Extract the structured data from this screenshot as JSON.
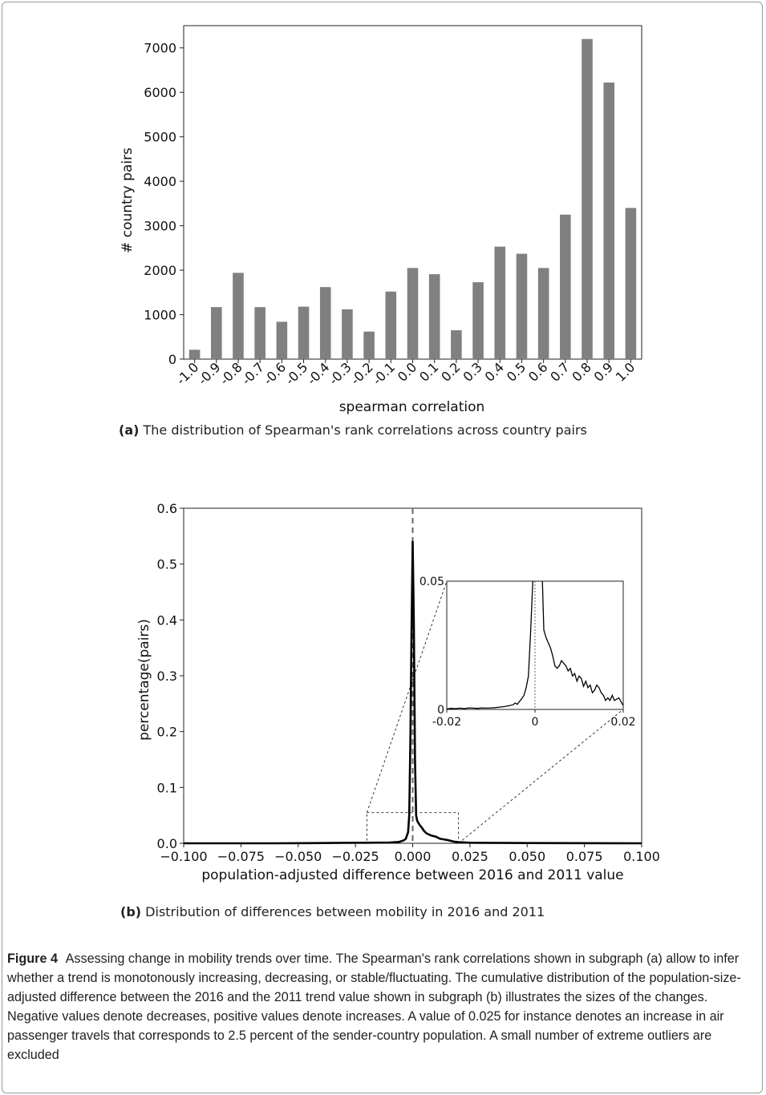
{
  "chart_data": [
    {
      "type": "bar",
      "categories": [
        "-1.0",
        "-0.9",
        "-0.8",
        "-0.7",
        "-0.6",
        "-0.5",
        "-0.4",
        "-0.3",
        "-0.2",
        "-0.1",
        "0.0",
        "0.1",
        "0.2",
        "0.3",
        "0.4",
        "0.5",
        "0.6",
        "0.7",
        "0.8",
        "0.9",
        "1.0"
      ],
      "values": [
        210,
        1170,
        1940,
        1170,
        840,
        1180,
        1620,
        1120,
        620,
        1520,
        2050,
        1910,
        650,
        1730,
        2530,
        2370,
        2050,
        3250,
        7200,
        6220,
        3400
      ],
      "xlabel": "spearman correlation",
      "ylabel": "# country pairs",
      "yticks": [
        0,
        1000,
        2000,
        3000,
        4000,
        5000,
        6000,
        7000
      ],
      "ylim": [
        0,
        7500
      ],
      "bar_color": "#808080",
      "grid": false,
      "caption_label": "(a)",
      "caption": "The distribution of Spearman's rank correlations across country pairs"
    },
    {
      "type": "line",
      "x": [
        -0.1,
        -0.08,
        -0.06,
        -0.04,
        -0.03,
        -0.02,
        -0.015,
        -0.01,
        -0.006,
        -0.004,
        -0.003,
        -0.002,
        -0.0015,
        -0.001,
        -0.0005,
        0.0,
        0.0005,
        0.001,
        0.0015,
        0.002,
        0.003,
        0.004,
        0.005,
        0.006,
        0.008,
        0.01,
        0.012,
        0.015,
        0.018,
        0.02,
        0.025,
        0.03,
        0.05,
        0.07,
        0.1
      ],
      "y": [
        0.0,
        0.0,
        0.0,
        0.0005,
        0.0008,
        0.001,
        0.0012,
        0.0015,
        0.0025,
        0.005,
        0.008,
        0.02,
        0.05,
        0.18,
        0.38,
        0.54,
        0.4,
        0.15,
        0.05,
        0.04,
        0.033,
        0.028,
        0.022,
        0.018,
        0.014,
        0.012,
        0.008,
        0.006,
        0.003,
        0.002,
        0.001,
        0.0008,
        0.0005,
        0.0003,
        0.0
      ],
      "xlabel": "population-adjusted difference between 2016 and 2011 value",
      "ylabel": "percentage(pairs)",
      "xticks": [
        "−0.100",
        "−0.075",
        "−0.050",
        "−0.025",
        "0.000",
        "0.025",
        "0.050",
        "0.075",
        "0.100"
      ],
      "yticks": [
        "0.0",
        "0.1",
        "0.2",
        "0.3",
        "0.4",
        "0.5",
        "0.6"
      ],
      "xlim": [
        -0.1,
        0.1
      ],
      "ylim": [
        0,
        0.6
      ],
      "reference_line_x": 0.0,
      "grid": false,
      "inset": {
        "xlim": [
          -0.02,
          0.02
        ],
        "ylim": [
          0,
          0.05
        ],
        "xticks": [
          "-0.02",
          "0",
          "0.02"
        ],
        "yticks": [
          "0",
          "0.05"
        ],
        "x": [
          -0.02,
          -0.019,
          -0.018,
          -0.017,
          -0.016,
          -0.015,
          -0.014,
          -0.013,
          -0.012,
          -0.011,
          -0.01,
          -0.009,
          -0.008,
          -0.007,
          -0.006,
          -0.005,
          -0.0045,
          -0.004,
          -0.0035,
          -0.003,
          -0.0025,
          -0.002,
          -0.0015,
          -0.001,
          -0.0005,
          0.0,
          0.0015,
          0.002,
          0.0025,
          0.003,
          0.0035,
          0.004,
          0.0045,
          0.005,
          0.0055,
          0.006,
          0.0065,
          0.007,
          0.0075,
          0.008,
          0.0085,
          0.009,
          0.0095,
          0.01,
          0.0105,
          0.011,
          0.0115,
          0.012,
          0.0125,
          0.013,
          0.0135,
          0.014,
          0.0145,
          0.015,
          0.0155,
          0.016,
          0.0165,
          0.017,
          0.0175,
          0.018,
          0.0185,
          0.019,
          0.0195,
          0.02
        ],
        "y": [
          0.0002,
          0.0004,
          0.0003,
          0.0005,
          0.0003,
          0.0006,
          0.0005,
          0.0004,
          0.0006,
          0.0005,
          0.0006,
          0.0007,
          0.0009,
          0.0011,
          0.0014,
          0.0018,
          0.0025,
          0.002,
          0.0032,
          0.0042,
          0.0055,
          0.0085,
          0.013,
          0.03,
          0.05,
          0.06,
          0.06,
          0.031,
          0.028,
          0.026,
          0.024,
          0.021,
          0.017,
          0.016,
          0.017,
          0.019,
          0.018,
          0.017,
          0.015,
          0.016,
          0.013,
          0.014,
          0.011,
          0.013,
          0.012,
          0.009,
          0.011,
          0.0085,
          0.0095,
          0.0065,
          0.0075,
          0.0095,
          0.0085,
          0.0065,
          0.0055,
          0.0035,
          0.0045,
          0.0035,
          0.0055,
          0.0035,
          0.004,
          0.0045,
          0.003,
          0.0015
        ]
      },
      "caption_label": "(b)",
      "caption": "Distribution of differences between mobility in 2016 and 2011"
    }
  ],
  "figure_caption": {
    "label": "Figure 4",
    "text": "Assessing change in mobility trends over time. The Spearman's rank correlations shown in subgraph (a) allow to infer whether a trend is monotonously increasing, decreasing, or stable/fluctuating. The cumulative distribution of the population-size-adjusted difference between the 2016 and the 2011 trend value shown in subgraph (b) illustrates the sizes of the changes. Negative values denote decreases, positive values denote increases. A value of 0.025 for instance denotes an increase in air passenger travels that corresponds to 2.5 percent of the sender-country population. A small number of extreme outliers are excluded"
  }
}
